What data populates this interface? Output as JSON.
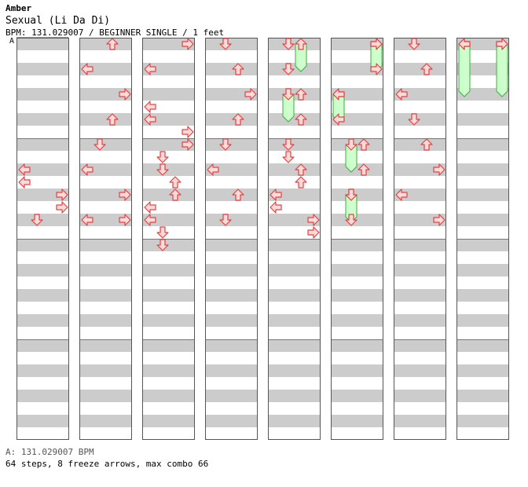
{
  "header": {
    "artist": "Amber",
    "title": "Sexual (Li Da Di)",
    "info": "BPM: 131.029007 / BEGINNER SINGLE / 1 feet",
    "section_marker": "A"
  },
  "footer": {
    "bpm_line": "A: 131.029007 BPM",
    "stats_line": "64 steps, 8 freeze arrows, max combo 66"
  },
  "colors": {
    "stripe": "#cccccc",
    "arrow_fill": "#ffd8d8",
    "arrow_stroke": "#dd4444",
    "freeze_fill": "#ccffcc",
    "freeze_stroke": "#44aa44"
  },
  "chart_data": {
    "type": "step-chart",
    "measures_per_column": 2,
    "rows_per_measure": 4,
    "lanes": [
      "L",
      "D",
      "U",
      "R"
    ],
    "steps": [
      {
        "col": 1,
        "row": 0,
        "lane": "U"
      },
      {
        "col": 1,
        "row": 2,
        "lane": "L"
      },
      {
        "col": 1,
        "row": 4,
        "lane": "R"
      },
      {
        "col": 1,
        "row": 6,
        "lane": "U"
      },
      {
        "col": 1,
        "row": 8,
        "lane": "D"
      },
      {
        "col": 1,
        "row": 10,
        "lane": "L"
      },
      {
        "col": 1,
        "row": 12,
        "lane": "R"
      },
      {
        "col": 1,
        "row": 14,
        "lane": "L"
      },
      {
        "col": 1,
        "row": 14,
        "lane": "R"
      },
      {
        "col": 0,
        "row": 10,
        "lane": "L"
      },
      {
        "col": 0,
        "row": 11,
        "lane": "L"
      },
      {
        "col": 0,
        "row": 12,
        "lane": "R"
      },
      {
        "col": 0,
        "row": 13,
        "lane": "R"
      },
      {
        "col": 0,
        "row": 14,
        "lane": "D"
      },
      {
        "col": 2,
        "row": 0,
        "lane": "R"
      },
      {
        "col": 2,
        "row": 2,
        "lane": "L"
      },
      {
        "col": 2,
        "row": 5,
        "lane": "L"
      },
      {
        "col": 2,
        "row": 6,
        "lane": "L"
      },
      {
        "col": 2,
        "row": 7,
        "lane": "R"
      },
      {
        "col": 2,
        "row": 8,
        "lane": "R"
      },
      {
        "col": 2,
        "row": 9,
        "lane": "D"
      },
      {
        "col": 2,
        "row": 10,
        "lane": "D"
      },
      {
        "col": 2,
        "row": 11,
        "lane": "U"
      },
      {
        "col": 2,
        "row": 12,
        "lane": "U"
      },
      {
        "col": 2,
        "row": 13,
        "lane": "L"
      },
      {
        "col": 2,
        "row": 14,
        "lane": "L"
      },
      {
        "col": 2,
        "row": 15,
        "lane": "D"
      },
      {
        "col": 2,
        "row": 16,
        "lane": "D"
      },
      {
        "col": 3,
        "row": 0,
        "lane": "D"
      },
      {
        "col": 3,
        "row": 2,
        "lane": "U"
      },
      {
        "col": 3,
        "row": 4,
        "lane": "R"
      },
      {
        "col": 3,
        "row": 6,
        "lane": "U"
      },
      {
        "col": 3,
        "row": 8,
        "lane": "D"
      },
      {
        "col": 3,
        "row": 10,
        "lane": "L"
      },
      {
        "col": 3,
        "row": 12,
        "lane": "U"
      },
      {
        "col": 3,
        "row": 14,
        "lane": "D"
      },
      {
        "col": 4,
        "row": 0,
        "lane": "D"
      },
      {
        "col": 4,
        "row": 2,
        "lane": "D"
      },
      {
        "col": 4,
        "row": 4,
        "lane": "U"
      },
      {
        "col": 4,
        "row": 6,
        "lane": "U"
      },
      {
        "col": 4,
        "row": 8,
        "lane": "D"
      },
      {
        "col": 4,
        "row": 9,
        "lane": "D"
      },
      {
        "col": 4,
        "row": 10,
        "lane": "U"
      },
      {
        "col": 4,
        "row": 11,
        "lane": "U"
      },
      {
        "col": 4,
        "row": 12,
        "lane": "L"
      },
      {
        "col": 4,
        "row": 13,
        "lane": "L"
      },
      {
        "col": 4,
        "row": 14,
        "lane": "R"
      },
      {
        "col": 4,
        "row": 15,
        "lane": "R"
      },
      {
        "col": 5,
        "row": 0,
        "lane": "R"
      },
      {
        "col": 5,
        "row": 2,
        "lane": "R"
      },
      {
        "col": 5,
        "row": 4,
        "lane": "L"
      },
      {
        "col": 5,
        "row": 6,
        "lane": "L"
      },
      {
        "col": 5,
        "row": 8,
        "lane": "U"
      },
      {
        "col": 5,
        "row": 10,
        "lane": "U"
      },
      {
        "col": 5,
        "row": 12,
        "lane": "D"
      },
      {
        "col": 5,
        "row": 14,
        "lane": "D"
      },
      {
        "col": 6,
        "row": 0,
        "lane": "D"
      },
      {
        "col": 6,
        "row": 2,
        "lane": "U"
      },
      {
        "col": 6,
        "row": 4,
        "lane": "L"
      },
      {
        "col": 6,
        "row": 6,
        "lane": "D"
      },
      {
        "col": 6,
        "row": 8,
        "lane": "U"
      },
      {
        "col": 6,
        "row": 10,
        "lane": "R"
      },
      {
        "col": 6,
        "row": 12,
        "lane": "L"
      },
      {
        "col": 6,
        "row": 14,
        "lane": "R"
      },
      {
        "col": 7,
        "row": 0,
        "lane": "L"
      },
      {
        "col": 7,
        "row": 0,
        "lane": "R"
      }
    ],
    "freezes": [
      {
        "col": 4,
        "lane": "U",
        "start": 0,
        "end": 2
      },
      {
        "col": 5,
        "lane": "R",
        "start": 0,
        "end": 2
      },
      {
        "col": 7,
        "lane": "L",
        "start": 0,
        "end": 4
      },
      {
        "col": 7,
        "lane": "R",
        "start": 0,
        "end": 4
      },
      {
        "col": 4,
        "lane": "D",
        "start": 4,
        "end": 6
      },
      {
        "col": 5,
        "lane": "L",
        "start": 4,
        "end": 6
      },
      {
        "col": 5,
        "lane": "D",
        "start": 8,
        "end": 10
      },
      {
        "col": 5,
        "lane": "D",
        "start": 12,
        "end": 14
      }
    ]
  }
}
